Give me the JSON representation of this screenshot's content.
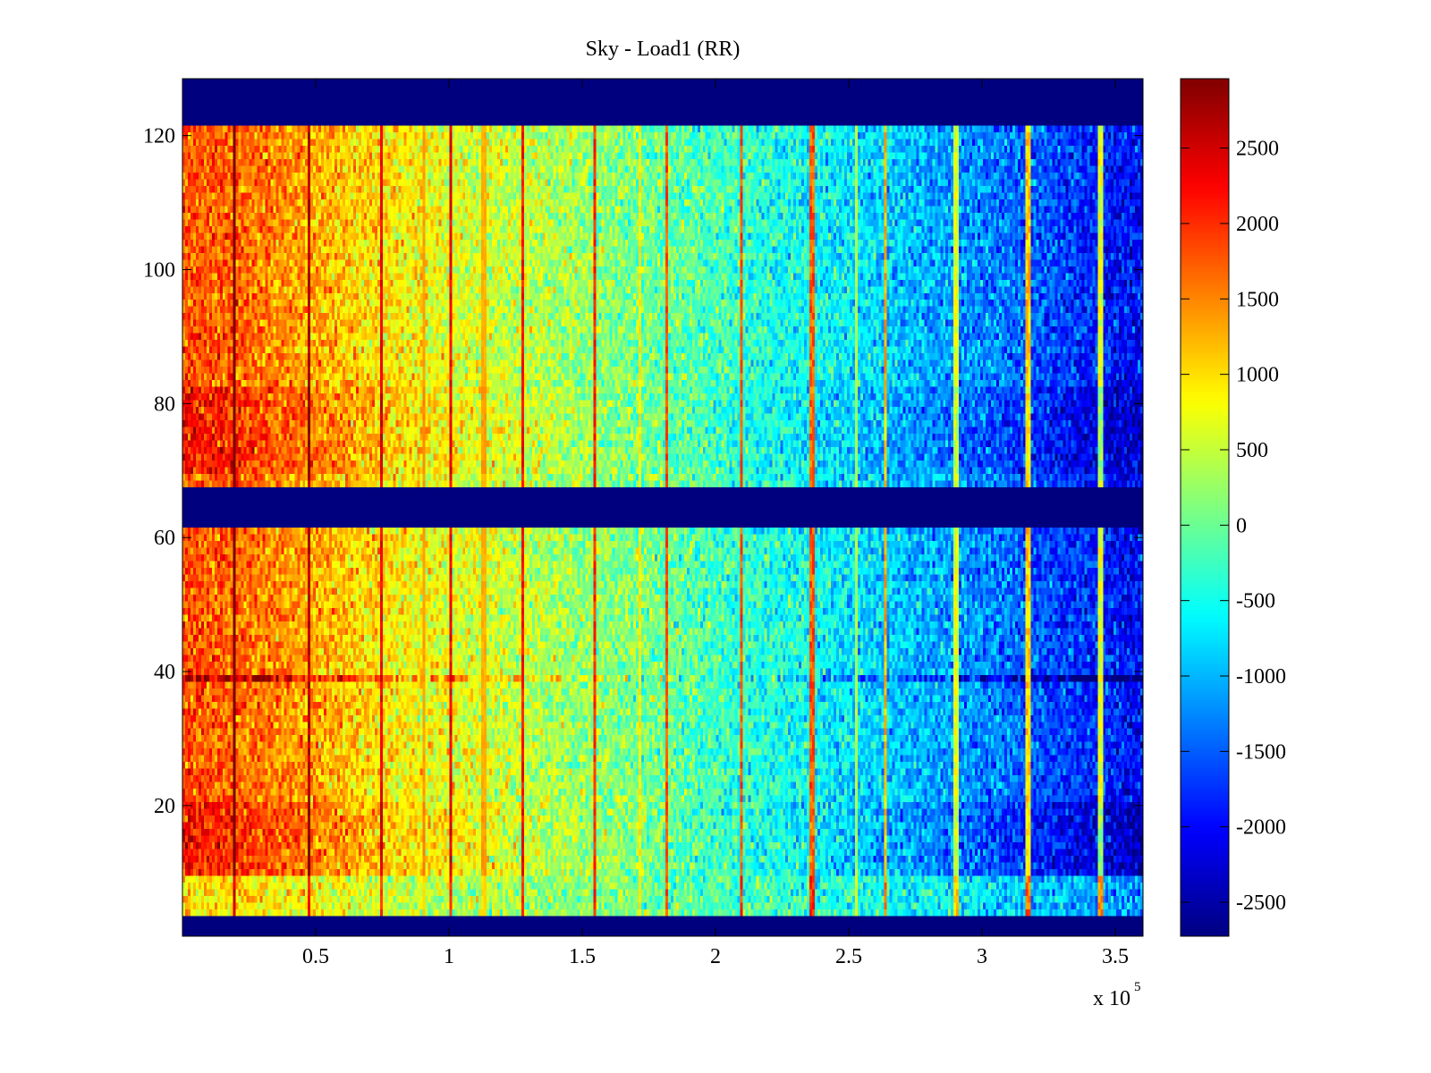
{
  "chart_data": {
    "type": "heatmap",
    "title": "Sky - Load1 (RR)",
    "xlabel": "",
    "ylabel": "",
    "x_multiplier_label": "x 10",
    "x_multiplier_exponent": "5",
    "xlim": [
      0,
      360400
    ],
    "ylim": [
      0.5,
      128.5
    ],
    "clim": [
      -2725,
      2960
    ],
    "colormap": "jet",
    "x_ticks": [
      50000,
      100000,
      150000,
      200000,
      250000,
      300000,
      350000
    ],
    "x_tick_labels": [
      "0.5",
      "1",
      "1.5",
      "2",
      "2.5",
      "3",
      "3.5"
    ],
    "y_ticks": [
      20,
      40,
      60,
      80,
      100,
      120
    ],
    "y_tick_labels": [
      "20",
      "40",
      "60",
      "80",
      "100",
      "120"
    ],
    "colorbar_ticks": [
      2500,
      2000,
      1500,
      1000,
      500,
      0,
      -500,
      -1000,
      -1500,
      -2000,
      -2500
    ],
    "colorbar_tick_labels": [
      "2500",
      "2000",
      "1500",
      "1000",
      "500",
      "0",
      "-500",
      "-1000",
      "-1500",
      "-2000",
      "-2500"
    ],
    "masked_row_ranges": [
      [
        1,
        3
      ],
      [
        62,
        67
      ],
      [
        122,
        128
      ]
    ],
    "masked_value": -2725,
    "x_profile": {
      "x": [
        0,
        20000,
        50000,
        70000,
        100000,
        130000,
        180000,
        230000,
        280000,
        320000,
        350000,
        360000
      ],
      "mean": [
        1800,
        1700,
        1300,
        1000,
        700,
        450,
        0,
        -500,
        -1000,
        -1500,
        -1900,
        -2000
      ]
    },
    "stripes": [
      {
        "x": 19800,
        "delta": 1500
      },
      {
        "x": 47300,
        "delta": 1400
      },
      {
        "x": 74200,
        "delta": 1400
      },
      {
        "x": 90300,
        "delta": 600
      },
      {
        "x": 101000,
        "delta": 1700
      },
      {
        "x": 113100,
        "delta": 700
      },
      {
        "x": 127900,
        "delta": 1800
      },
      {
        "x": 155000,
        "delta": 1900
      },
      {
        "x": 171500,
        "delta": 900
      },
      {
        "x": 181900,
        "delta": 1900
      },
      {
        "x": 209400,
        "delta": 2200
      },
      {
        "x": 236200,
        "delta": 2400
      },
      {
        "x": 252700,
        "delta": 1200
      },
      {
        "x": 263400,
        "delta": 2200
      },
      {
        "x": 290300,
        "delta": 1900
      },
      {
        "x": 317400,
        "delta": 2700
      },
      {
        "x": 344300,
        "delta": 2600
      }
    ],
    "anomalous_row": 39,
    "enhanced_row_ranges": [
      [
        10,
        20
      ],
      [
        70,
        82
      ]
    ],
    "noise_std": 350
  }
}
